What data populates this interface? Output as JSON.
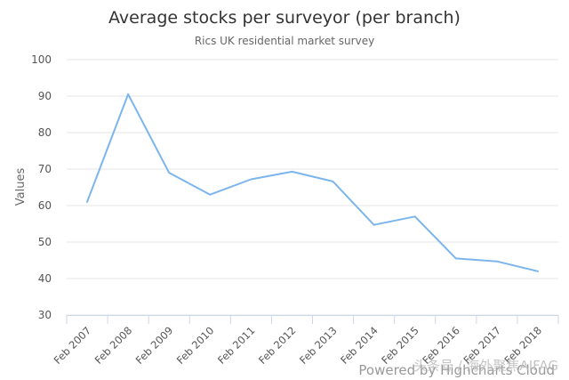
{
  "chart_data": {
    "type": "line",
    "title": "Average stocks per surveyor (per branch)",
    "subtitle": "Rics UK residential market survey",
    "xlabel": "",
    "ylabel": "Values",
    "ylim": [
      30,
      100
    ],
    "yticks": [
      30,
      40,
      50,
      60,
      70,
      80,
      90,
      100
    ],
    "grid": true,
    "legend": "none",
    "categories": [
      "Feb 2007",
      "Feb 2008",
      "Feb 2009",
      "Feb 2010",
      "Feb 2011",
      "Feb 2012",
      "Feb 2013",
      "Feb 2014",
      "Feb 2015",
      "Feb 2016",
      "Feb 2017",
      "Feb 2018"
    ],
    "series": [
      {
        "values": [
          61,
          90.5,
          69,
          63,
          67.2,
          69.3,
          66.6,
          54.7,
          57,
          45.5,
          44.7,
          42
        ]
      }
    ],
    "line_color": "#7cb5ec",
    "grid_color": "#e6e6e6"
  },
  "credits": "Powered by Highcharts Cloud",
  "watermark": "头条号 / 海外聚焦AIFAG"
}
